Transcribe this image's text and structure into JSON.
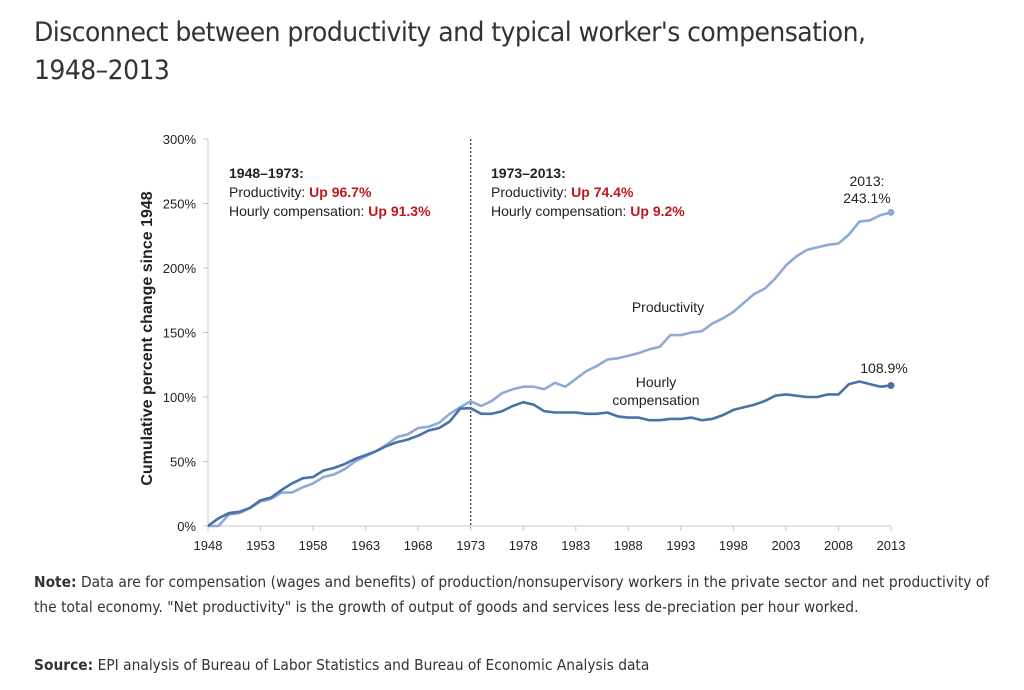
{
  "title": "Disconnect between productivity and typical worker's compensation, 1948–2013",
  "chart_data": {
    "type": "line",
    "title": "Disconnect between productivity and typical worker's compensation, 1948–2013",
    "xlabel": "",
    "ylabel": "Cumulative percent change since 1948",
    "xlim": [
      1948,
      2013
    ],
    "ylim": [
      0,
      300
    ],
    "x_ticks": [
      "1948",
      "1953",
      "1958",
      "1963",
      "1968",
      "1973",
      "1978",
      "1983",
      "1988",
      "1993",
      "1998",
      "2003",
      "2008",
      "2013"
    ],
    "y_ticks": [
      "0%",
      "50%",
      "100%",
      "150%",
      "200%",
      "250%",
      "300%"
    ],
    "y_tick_values": [
      0,
      50,
      100,
      150,
      200,
      250,
      300
    ],
    "grid": false,
    "legend": "none (direct labels)",
    "x": [
      1948,
      1949,
      1950,
      1951,
      1952,
      1953,
      1954,
      1955,
      1956,
      1957,
      1958,
      1959,
      1960,
      1961,
      1962,
      1963,
      1964,
      1965,
      1966,
      1967,
      1968,
      1969,
      1970,
      1971,
      1972,
      1973,
      1974,
      1975,
      1976,
      1977,
      1978,
      1979,
      1980,
      1981,
      1982,
      1983,
      1984,
      1985,
      1986,
      1987,
      1988,
      1989,
      1990,
      1991,
      1992,
      1993,
      1994,
      1995,
      1996,
      1997,
      1998,
      1999,
      2000,
      2001,
      2002,
      2003,
      2004,
      2005,
      2006,
      2007,
      2008,
      2009,
      2010,
      2011,
      2012,
      2013
    ],
    "series": [
      {
        "name": "Productivity",
        "color": "#8eaad6",
        "values": [
          0,
          0,
          9,
          10,
          14,
          19,
          21,
          26,
          26,
          30,
          33,
          38,
          40,
          44,
          50,
          54,
          58,
          63,
          69,
          71,
          76,
          77,
          80,
          87,
          92,
          96.7,
          93,
          97,
          103,
          106,
          108,
          108,
          106,
          111,
          108,
          114,
          120,
          124,
          129,
          130,
          132,
          134,
          137,
          139,
          148,
          148,
          150,
          151,
          157,
          161,
          166,
          173,
          180,
          184,
          192,
          202,
          209,
          214,
          216,
          218,
          219,
          226,
          236,
          237,
          241,
          243.1
        ]
      },
      {
        "name": "Hourly compensation",
        "color": "#4a72a8",
        "values": [
          0,
          6,
          10,
          11,
          14,
          20,
          22,
          28,
          33,
          37,
          38,
          43,
          45,
          48,
          52,
          55,
          58,
          62,
          65,
          67,
          70,
          74,
          76,
          81,
          91,
          91.3,
          87,
          87,
          89,
          93,
          96,
          94,
          89,
          88,
          88,
          88,
          87,
          87,
          88,
          85,
          84,
          84,
          82,
          82,
          83,
          83,
          84,
          82,
          83,
          86,
          90,
          92,
          94,
          97,
          101,
          102,
          101,
          100,
          100,
          102,
          102,
          110,
          112,
          110,
          108,
          108.9
        ]
      }
    ],
    "series_labels": {
      "productivity": "Productivity",
      "compensation_line1": "Hourly",
      "compensation_line2": "compensation"
    },
    "end_labels": {
      "productivity_line1": "2013:",
      "productivity_line2": "243.1%",
      "compensation": "108.9%"
    },
    "divider_year": 1973,
    "annotations": [
      {
        "period": "1948–1973:",
        "productivity_label": "Productivity: ",
        "productivity_value": "Up 96.7%",
        "compensation_label": "Hourly compensation: ",
        "compensation_value": "Up 91.3%"
      },
      {
        "period": "1973–2013:",
        "productivity_label": "Productivity: ",
        "productivity_value": "Up 74.4%",
        "compensation_label": "Hourly compensation: ",
        "compensation_value": "Up 9.2%"
      }
    ],
    "highlight_color": "#c0161f"
  },
  "note": {
    "label": "Note:",
    "text": " Data are for compensation (wages and benefits) of production/nonsupervisory workers in the private sector and net productivity of the total economy. \"Net productivity\" is the growth of output of goods and services less de-preciation per hour worked."
  },
  "source": {
    "label": "Source:",
    "text": " EPI analysis of Bureau of Labor Statistics and Bureau of Economic Analysis data"
  }
}
